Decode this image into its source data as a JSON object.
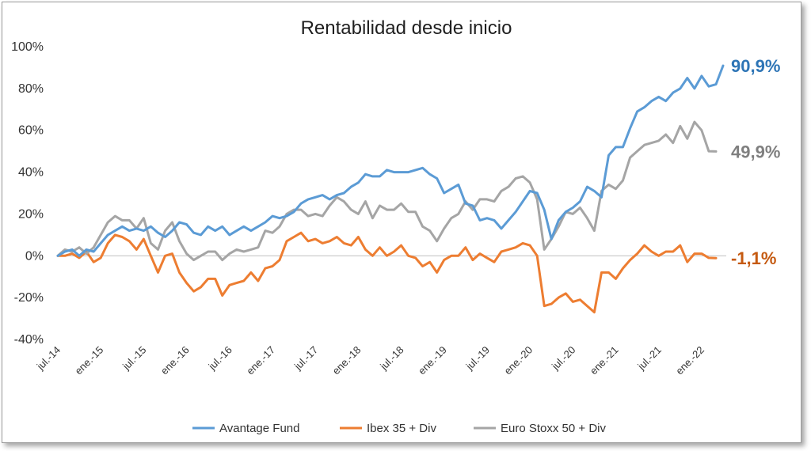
{
  "chart_data": {
    "type": "line",
    "title": "Rentabilidad desde inicio",
    "xlabel": "",
    "ylabel": "",
    "ylim": [
      -40,
      100
    ],
    "yticks": [
      -40,
      -20,
      0,
      20,
      40,
      60,
      80,
      100
    ],
    "ytick_labels": [
      "-40%",
      "-20%",
      "0%",
      "20%",
      "40%",
      "60%",
      "80%",
      "100%"
    ],
    "xtick_labels": [
      "jul.-14",
      "ene.-15",
      "jul.-15",
      "ene.-16",
      "jul.-16",
      "ene.-17",
      "jul.-17",
      "ene.-18",
      "jul.-18",
      "ene.-19",
      "jul.-19",
      "ene.-20",
      "jul.-20",
      "ene.-21",
      "jul.-21",
      "ene.-22"
    ],
    "x_start": "jul.-14",
    "x_frequency": "monthly",
    "grid": false,
    "legend_position": "bottom",
    "series": [
      {
        "name": "Avantage Fund",
        "color": "#5B9BD5",
        "end_label": "90,9%",
        "values": [
          0,
          2,
          3,
          0,
          3,
          2,
          6,
          10,
          12,
          14,
          12,
          13,
          12,
          14,
          11,
          9,
          12,
          16,
          15,
          11,
          10,
          14,
          12,
          14,
          10,
          12,
          14,
          12,
          14,
          16,
          19,
          18,
          19,
          21,
          25,
          27,
          28,
          29,
          27,
          29,
          30,
          33,
          35,
          39,
          38,
          38,
          41,
          40,
          40,
          40,
          41,
          42,
          39,
          37,
          30,
          32,
          34,
          25,
          24,
          17,
          18,
          17,
          13,
          17,
          21,
          26,
          31,
          30,
          22,
          8,
          17,
          21,
          23,
          26,
          33,
          31,
          28,
          48,
          52,
          52,
          61,
          69,
          71,
          74,
          76,
          74,
          78,
          80,
          85,
          80,
          86,
          81,
          82,
          90.9
        ]
      },
      {
        "name": "Ibex 35 + Div",
        "color": "#ED7D31",
        "end_label": "-1,1%",
        "values": [
          0,
          0,
          1,
          -1,
          2,
          -3,
          -1,
          6,
          10,
          9,
          7,
          3,
          8,
          0,
          -8,
          0,
          1,
          -8,
          -13,
          -17,
          -15,
          -11,
          -11,
          -19,
          -14,
          -13,
          -12,
          -8,
          -12,
          -6,
          -5,
          -2,
          7,
          9,
          11,
          7,
          8,
          6,
          7,
          9,
          6,
          5,
          9,
          3,
          0,
          4,
          0,
          2,
          5,
          0,
          -1,
          -5,
          -3,
          -8,
          -2,
          0,
          0,
          4,
          -2,
          1,
          -1,
          -3,
          2,
          3,
          4,
          6,
          5,
          0,
          -24,
          -23,
          -20,
          -18,
          -22,
          -21,
          -24,
          -27,
          -8,
          -8,
          -11,
          -6,
          -2,
          1,
          5,
          2,
          0,
          2,
          2,
          5,
          -3,
          1,
          1,
          -1,
          -1.1
        ]
      },
      {
        "name": "Euro Stoxx 50 + Div",
        "color": "#A5A5A5",
        "end_label": "49,9%",
        "values": [
          0,
          3,
          2,
          4,
          1,
          4,
          10,
          16,
          19,
          17,
          17,
          13,
          18,
          6,
          3,
          12,
          16,
          7,
          1,
          -2,
          0,
          2,
          2,
          -2,
          1,
          3,
          2,
          3,
          4,
          12,
          11,
          14,
          20,
          22,
          22,
          19,
          20,
          19,
          24,
          28,
          26,
          22,
          20,
          26,
          18,
          24,
          22,
          22,
          25,
          21,
          21,
          14,
          12,
          7,
          13,
          18,
          20,
          26,
          22,
          27,
          27,
          26,
          31,
          33,
          37,
          38,
          35,
          27,
          3,
          8,
          14,
          21,
          20,
          23,
          18,
          12,
          31,
          34,
          32,
          36,
          47,
          50,
          53,
          54,
          55,
          58,
          54,
          62,
          56,
          64,
          60,
          50,
          49.9
        ]
      }
    ]
  }
}
